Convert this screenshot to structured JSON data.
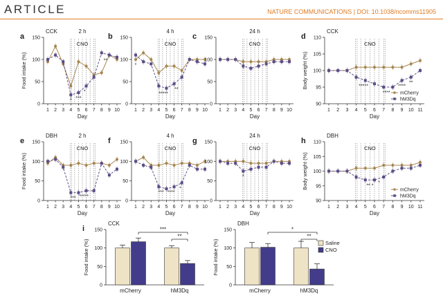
{
  "header": {
    "journal_label": "ARTICLE",
    "doi": "NATURE COMMUNICATIONS | DOI: 10.1038/ncomms11905"
  },
  "colors": {
    "mcherry": "#a6854f",
    "hm3dq": "#5b4d86",
    "saline": "#efe3c6",
    "cno": "#433c8a"
  },
  "chart_data": [
    {
      "id": "a",
      "type": "line",
      "panel": "a",
      "title": "2 h",
      "corner_label": "CCK",
      "cno_label": "CNO",
      "xlabel": "Day",
      "ylabel": "Food intake (%)",
      "ylim": [
        0,
        150
      ],
      "yticks": [
        0,
        50,
        100,
        150
      ],
      "x": [
        1,
        2,
        3,
        4,
        5,
        6,
        7,
        8,
        9,
        10
      ],
      "cno_days": [
        4,
        5,
        6,
        7
      ],
      "series": [
        {
          "values": [
            95,
            130,
            90,
            40,
            95,
            85,
            65,
            70,
            110,
            100
          ]
        },
        {
          "values": [
            100,
            110,
            95,
            20,
            25,
            40,
            60,
            115,
            110,
            105
          ]
        }
      ],
      "sig": [
        {
          "x": 4,
          "text": "*"
        },
        {
          "x": 5,
          "text": "***"
        },
        {
          "x": 5.8,
          "text": "*"
        },
        {
          "x": 8.5,
          "text": "**"
        }
      ]
    },
    {
      "id": "b",
      "type": "line",
      "panel": "b",
      "title": "4 h",
      "corner_label": "",
      "cno_label": "CNO",
      "xlabel": "Day",
      "ylabel": "",
      "ylim": [
        0,
        150
      ],
      "yticks": [
        0,
        50,
        100,
        150
      ],
      "x": [
        1,
        2,
        3,
        4,
        5,
        6,
        7,
        8,
        9,
        10
      ],
      "cno_days": [
        4,
        5,
        6,
        7
      ],
      "series": [
        {
          "values": [
            100,
            115,
            100,
            70,
            85,
            85,
            75,
            100,
            100,
            100
          ]
        },
        {
          "values": [
            110,
            95,
            90,
            40,
            35,
            45,
            60,
            100,
            95,
            90
          ]
        }
      ],
      "sig": [
        {
          "x": 1,
          "text": "*"
        },
        {
          "x": 4.6,
          "text": "*****"
        },
        {
          "x": 6.3,
          "text": "**"
        }
      ]
    },
    {
      "id": "c",
      "type": "line",
      "panel": "c",
      "title": "24 h",
      "corner_label": "",
      "cno_label": "CNO",
      "xlabel": "Day",
      "ylabel": "",
      "ylim": [
        0,
        150
      ],
      "yticks": [
        0,
        50,
        100,
        150
      ],
      "x": [
        1,
        2,
        3,
        4,
        5,
        6,
        7,
        8,
        9,
        10
      ],
      "cno_days": [
        4,
        5,
        6,
        7
      ],
      "series": [
        {
          "values": [
            100,
            100,
            100,
            95,
            95,
            95,
            95,
            100,
            100,
            100
          ]
        },
        {
          "values": [
            100,
            100,
            100,
            85,
            80,
            85,
            90,
            95,
            95,
            95
          ]
        }
      ],
      "sig": []
    },
    {
      "id": "d",
      "type": "line",
      "panel": "d",
      "title": "",
      "corner_label": "CCK",
      "cno_label": "CNO",
      "xlabel": "Day",
      "ylabel": "Body weight (%)",
      "ylim": [
        90,
        110
      ],
      "yticks": [
        90,
        95,
        100,
        105,
        110
      ],
      "x": [
        1,
        2,
        3,
        4,
        5,
        6,
        7,
        8,
        9,
        10,
        11
      ],
      "cno_days": [
        4,
        5,
        6,
        7
      ],
      "series": [
        {
          "name": "mCherry",
          "values": [
            100,
            100,
            100,
            101,
            101,
            101,
            101,
            101,
            101,
            102,
            103
          ]
        },
        {
          "name": "hM3Dq",
          "values": [
            100,
            100,
            100,
            98,
            97,
            96,
            95,
            95,
            97,
            98,
            100
          ]
        }
      ],
      "sig": [
        {
          "x": 4.8,
          "text": "*****"
        },
        {
          "x": 7.3,
          "text": "****"
        },
        {
          "x": 9,
          "text": "****"
        },
        {
          "x": 10,
          "text": "**"
        }
      ]
    },
    {
      "id": "e",
      "type": "line",
      "panel": "e",
      "title": "2 h",
      "corner_label": "DBH",
      "cno_label": "CNO",
      "xlabel": "Day",
      "ylabel": "Food intake (%)",
      "ylim": [
        0,
        150
      ],
      "yticks": [
        0,
        50,
        100,
        150
      ],
      "x": [
        1,
        2,
        3,
        4,
        5,
        6,
        7,
        8,
        9,
        10
      ],
      "cno_days": [
        4,
        5,
        6,
        7
      ],
      "series": [
        {
          "values": [
            95,
            110,
            90,
            90,
            95,
            90,
            95,
            95,
            90,
            105
          ]
        },
        {
          "values": [
            100,
            105,
            85,
            20,
            20,
            25,
            25,
            95,
            65,
            80
          ]
        }
      ],
      "sig": [
        {
          "x": 4.3,
          "text": "***"
        },
        {
          "x": 5.7,
          "text": "*****"
        }
      ]
    },
    {
      "id": "f",
      "type": "line",
      "panel": "f",
      "title": "4 h",
      "corner_label": "",
      "cno_label": "CNO",
      "xlabel": "Day",
      "ylabel": "",
      "ylim": [
        0,
        150
      ],
      "yticks": [
        0,
        50,
        100,
        150
      ],
      "x": [
        1,
        2,
        3,
        4,
        5,
        6,
        7,
        8,
        9,
        10
      ],
      "cno_days": [
        4,
        5,
        6,
        7
      ],
      "series": [
        {
          "values": [
            100,
            110,
            90,
            90,
            95,
            90,
            95,
            95,
            90,
            100
          ]
        },
        {
          "values": [
            100,
            90,
            85,
            35,
            30,
            35,
            45,
            90,
            80,
            80
          ]
        }
      ],
      "sig": [
        {
          "x": 4.3,
          "text": "***"
        },
        {
          "x": 5.6,
          "text": "****"
        },
        {
          "x": 6.8,
          "text": "*"
        }
      ]
    },
    {
      "id": "g",
      "type": "line",
      "panel": "g",
      "title": "24 h",
      "corner_label": "",
      "cno_label": "CNO",
      "xlabel": "Day",
      "ylabel": "",
      "ylim": [
        0,
        150
      ],
      "yticks": [
        0,
        50,
        100,
        150
      ],
      "x": [
        1,
        2,
        3,
        4,
        5,
        6,
        7,
        8,
        9,
        10
      ],
      "cno_days": [
        4,
        5,
        6,
        7
      ],
      "series": [
        {
          "values": [
            100,
            100,
            100,
            100,
            95,
            95,
            95,
            100,
            100,
            100
          ]
        },
        {
          "values": [
            100,
            95,
            95,
            75,
            80,
            85,
            85,
            100,
            95,
            95
          ]
        }
      ],
      "sig": [
        {
          "x": 4,
          "text": "*"
        }
      ]
    },
    {
      "id": "h",
      "type": "line",
      "panel": "h",
      "title": "",
      "corner_label": "DBH",
      "cno_label": "CNO",
      "xlabel": "Day",
      "ylabel": "Body weight (%)",
      "ylim": [
        90,
        110
      ],
      "yticks": [
        90,
        95,
        100,
        105,
        110
      ],
      "x": [
        1,
        2,
        3,
        4,
        5,
        6,
        7,
        8,
        9,
        10,
        11
      ],
      "cno_days": [
        4,
        5,
        6,
        7
      ],
      "series": [
        {
          "name": "mCherry",
          "values": [
            100,
            100,
            100,
            101,
            101,
            101,
            102,
            102,
            102,
            102,
            103
          ]
        },
        {
          "name": "hM3Dq",
          "values": [
            100,
            100,
            100,
            98,
            97,
            97,
            98,
            100,
            101,
            101,
            102
          ]
        }
      ],
      "sig": [
        {
          "x": 5.5,
          "text": "** *"
        },
        {
          "x": 6.5,
          "text": "*"
        }
      ]
    },
    {
      "id": "i1",
      "type": "bar",
      "panel": "i",
      "corner_label": "CCK",
      "ylabel": "Food intake (%)",
      "ylim": [
        0,
        150
      ],
      "yticks": [
        0,
        50,
        100,
        150
      ],
      "categories": [
        "mCherry",
        "hM3Dq"
      ],
      "series": [
        {
          "values": [
            100,
            100
          ],
          "errors": [
            8,
            6
          ]
        },
        {
          "values": [
            117,
            58
          ],
          "errors": [
            10,
            8
          ]
        }
      ],
      "brackets": [
        {
          "from": 0,
          "to": 1,
          "level": 1,
          "text": "***"
        },
        {
          "from": 1,
          "to": 1,
          "level": 0,
          "text": "**"
        }
      ]
    },
    {
      "id": "i2",
      "type": "bar",
      "panel": "",
      "corner_label": "DBH",
      "ylabel": "Food intake (%)",
      "ylim": [
        0,
        150
      ],
      "yticks": [
        0,
        50,
        100,
        150
      ],
      "categories": [
        "mCherry",
        "hM3Dq"
      ],
      "series": [
        {
          "name": "Saline",
          "values": [
            100,
            100
          ],
          "errors": [
            15,
            18
          ]
        },
        {
          "name": "CNO",
          "values": [
            102,
            43
          ],
          "errors": [
            10,
            14
          ]
        }
      ],
      "brackets": [
        {
          "from": 0,
          "to": 1,
          "level": 1,
          "text": "*"
        },
        {
          "from": 1,
          "to": 1,
          "level": 0,
          "text": "**"
        }
      ]
    }
  ]
}
